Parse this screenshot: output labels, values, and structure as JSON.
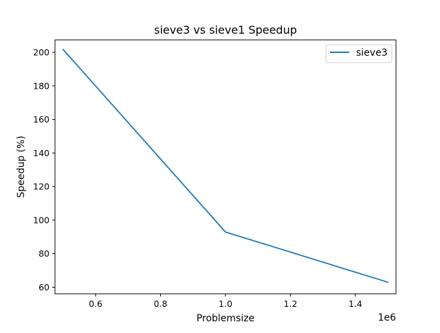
{
  "chart_data": {
    "type": "line",
    "title": "sieve3 vs sieve1 Speedup",
    "xlabel": "Problemsize",
    "ylabel": "Speedup (%)",
    "x_offset_label": "1e6",
    "xlim": [
      0.475,
      1.525
    ],
    "ylim": [
      56.1,
      207.4
    ],
    "x_ticks": [
      0.6,
      0.8,
      1.0,
      1.2,
      1.4
    ],
    "x_tick_labels": [
      "0.6",
      "0.8",
      "1.0",
      "1.2",
      "1.4"
    ],
    "y_ticks": [
      60,
      80,
      100,
      120,
      140,
      160,
      180,
      200
    ],
    "y_tick_labels": [
      "60",
      "80",
      "100",
      "120",
      "140",
      "160",
      "180",
      "200"
    ],
    "grid": false,
    "legend_position": "top-right",
    "series": [
      {
        "name": "sieve3",
        "color": "#1f77b4",
        "x": [
          0.5,
          1.0,
          1.5
        ],
        "y": [
          201.7,
          92.9,
          63.0
        ]
      }
    ]
  }
}
